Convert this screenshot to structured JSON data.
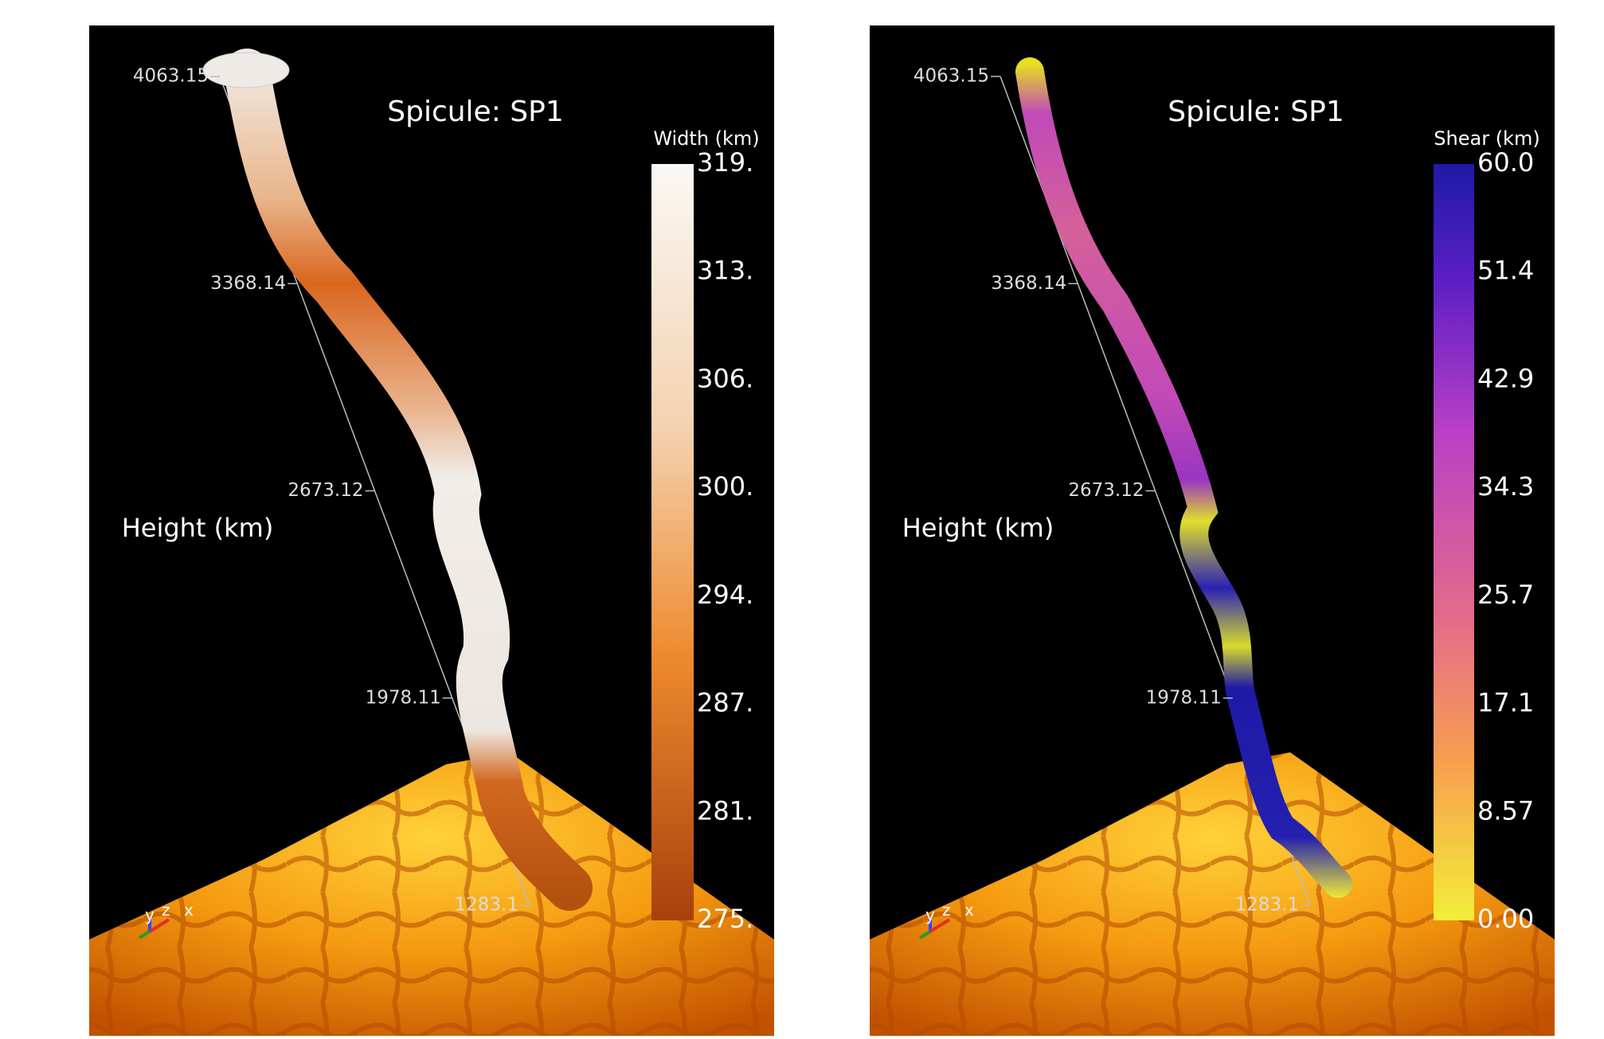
{
  "panels": [
    {
      "title": "Spicule: SP1",
      "colorbar": {
        "title": "Width (km)",
        "ticks": [
          "319.",
          "313.",
          "306.",
          "300.",
          "294.",
          "287.",
          "281.",
          "275."
        ]
      },
      "axis": {
        "label": "Height (km)",
        "ticks": [
          "4063.15",
          "3368.14",
          "2673.12",
          "1978.11",
          "1283.1"
        ]
      },
      "triad": [
        "y",
        "z",
        "x"
      ]
    },
    {
      "title": "Spicule: SP1",
      "colorbar": {
        "title": "Shear (km)",
        "ticks": [
          "60.0",
          "51.4",
          "42.9",
          "34.3",
          "25.7",
          "17.1",
          "8.57",
          "0.00"
        ]
      },
      "axis": {
        "label": "Height (km)",
        "ticks": [
          "4063.15",
          "3368.14",
          "2673.12",
          "1978.11",
          "1283.1"
        ]
      },
      "triad": [
        "y",
        "z",
        "x"
      ]
    }
  ]
}
